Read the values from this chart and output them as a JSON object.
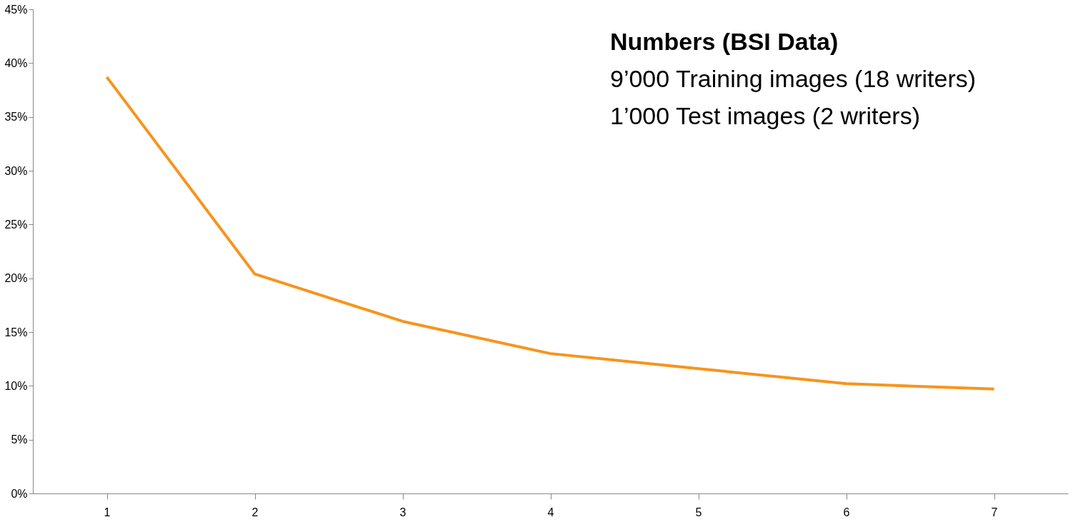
{
  "chart_data": {
    "type": "line",
    "categories": [
      "1",
      "2",
      "3",
      "4",
      "5",
      "6",
      "7"
    ],
    "series": [
      {
        "color": "#f7941d",
        "values": [
          38.7,
          20.4,
          16.0,
          13.0,
          11.6,
          10.2,
          9.7
        ]
      }
    ],
    "ylim": [
      0,
      45
    ],
    "yticks": [
      {
        "value": 0,
        "label": "0%"
      },
      {
        "value": 5,
        "label": "5%"
      },
      {
        "value": 10,
        "label": "10%"
      },
      {
        "value": 15,
        "label": "15%"
      },
      {
        "value": 20,
        "label": "20%"
      },
      {
        "value": 25,
        "label": "25%"
      },
      {
        "value": 30,
        "label": "30%"
      },
      {
        "value": 35,
        "label": "35%"
      },
      {
        "value": 40,
        "label": "40%"
      },
      {
        "value": 45,
        "label": "45%"
      }
    ],
    "grid": false,
    "marker": "none",
    "line_style": "solid",
    "annotations": [
      "Numbers (BSI Data)",
      "9’000 Training images (18 writers)",
      "1’000 Test images (2 writers)"
    ]
  }
}
